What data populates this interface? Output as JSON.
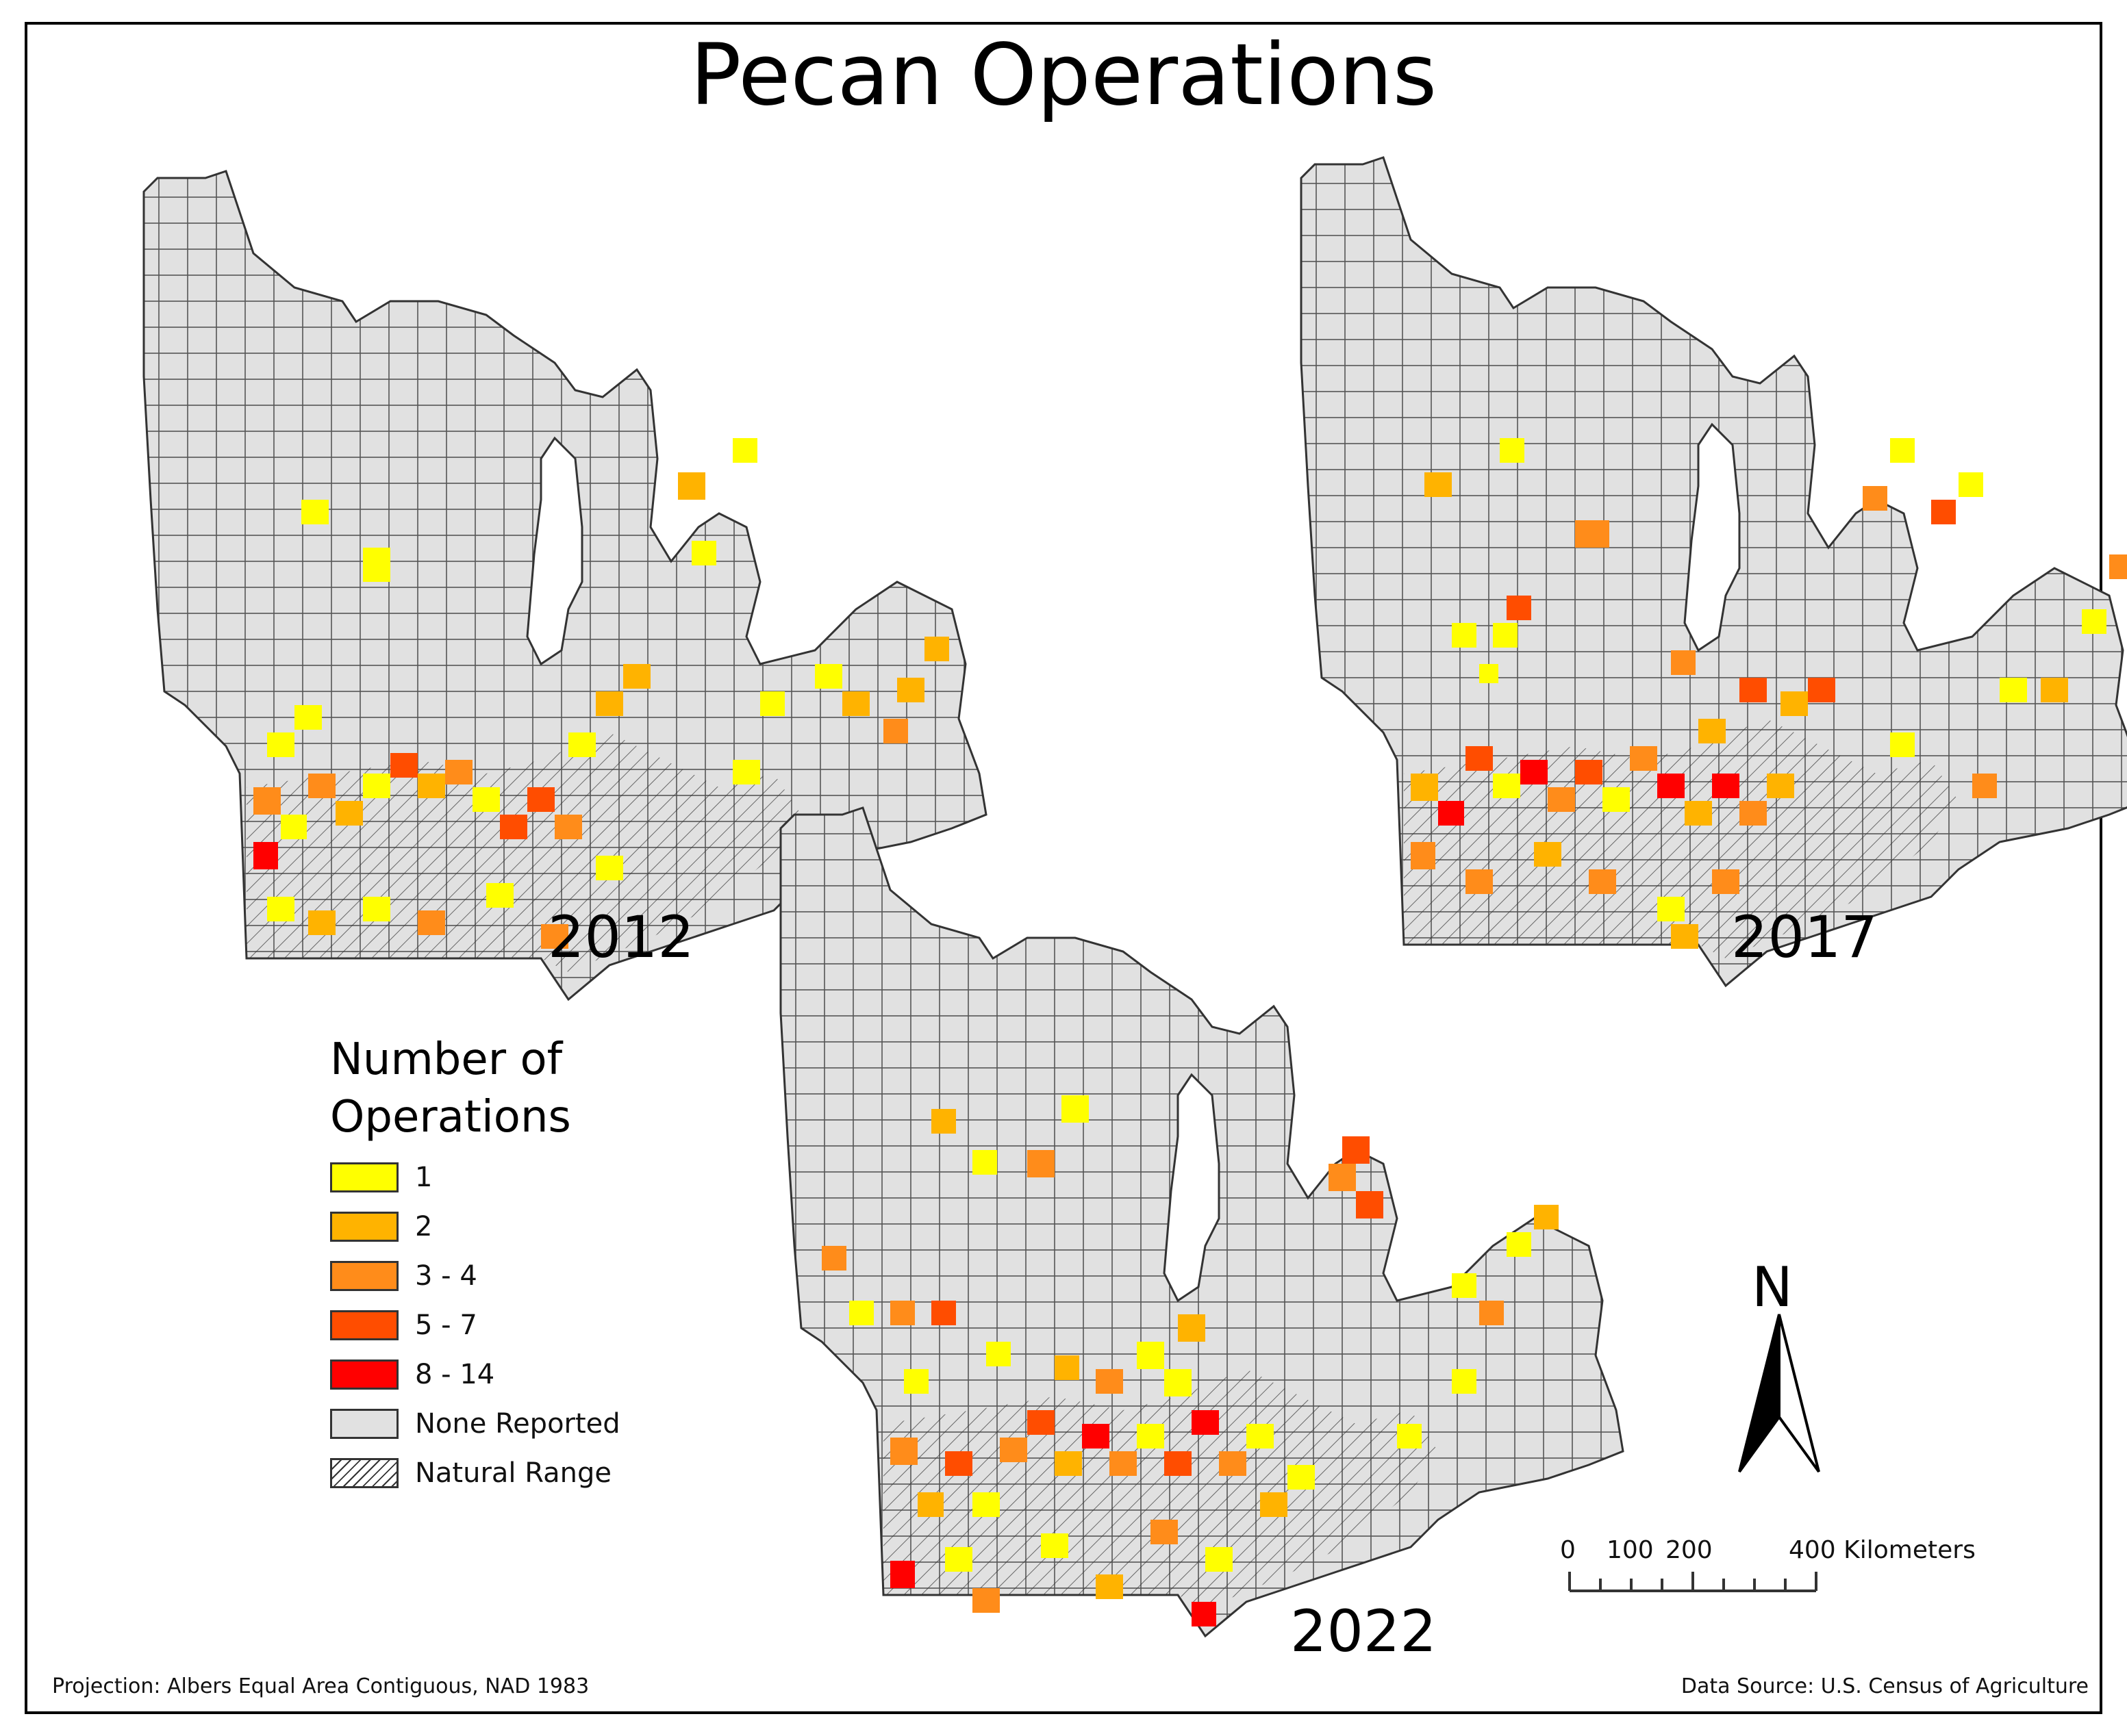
{
  "title": "Pecan Operations",
  "maps": [
    {
      "year": "2012"
    },
    {
      "year": "2017"
    },
    {
      "year": "2022"
    }
  ],
  "legend": {
    "title_line1": "Number of",
    "title_line2": "Operations",
    "items": [
      {
        "label": "1",
        "color": "#FFFF00"
      },
      {
        "label": "2",
        "color": "#FFB300"
      },
      {
        "label": "3 - 4",
        "color": "#FF8C1A"
      },
      {
        "label": "5 - 7",
        "color": "#FF4D00"
      },
      {
        "label": "8 - 14",
        "color": "#FF0000"
      },
      {
        "label": "None Reported",
        "color": "#E1E1E1"
      },
      {
        "label": "Natural Range",
        "pattern": "diagonal-hatch"
      }
    ]
  },
  "north_arrow": {
    "label": "N"
  },
  "scale_bar": {
    "ticks": [
      "0",
      "100",
      "200",
      "400 Kilometers"
    ]
  },
  "projection_note": "Projection: Albers Equal Area Contiguous, NAD 1983",
  "source_note": "Data Source: U.S. Census of Agriculture"
}
